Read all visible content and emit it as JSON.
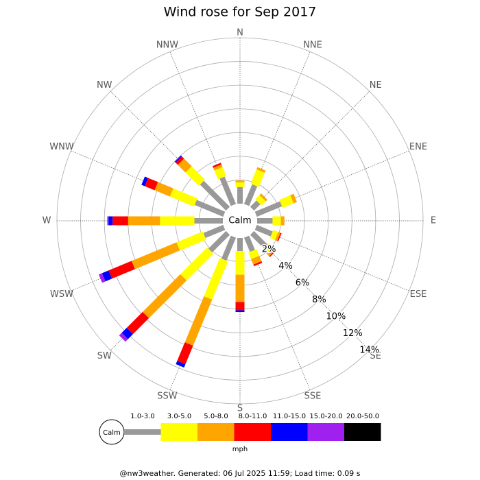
{
  "chart_data": {
    "type": "windrose",
    "title": "Wind rose for Sep 2017",
    "calm_label": "Calm",
    "directions": [
      "N",
      "NNE",
      "NE",
      "ENE",
      "E",
      "ESE",
      "SE",
      "SSE",
      "S",
      "SSW",
      "SW",
      "WSW",
      "W",
      "WNW",
      "NW",
      "NNW"
    ],
    "series": [
      {
        "name": "1.0-3.0",
        "color": "#999999",
        "values": [
          1.4,
          1.8,
          0.75,
          2.3,
          1.3,
          1.45,
          1.6,
          1.3,
          1.1,
          2.1,
          2.1,
          1.8,
          2.4,
          2.6,
          3.1,
          2.5
        ]
      },
      {
        "name": "3.0-5.0",
        "color": "#ffff00",
        "values": [
          0.4,
          1.3,
          0.5,
          1.0,
          0.7,
          0.45,
          0.5,
          0.6,
          2.0,
          3.5,
          3.2,
          2.4,
          2.9,
          2.2,
          1.6,
          0.8
        ]
      },
      {
        "name": "5.0-8.0",
        "color": "#ffa500",
        "values": [
          0.15,
          0.2,
          0.2,
          0.3,
          0.3,
          0.2,
          0.3,
          0.5,
          2.3,
          4.2,
          4.5,
          4.1,
          2.7,
          1.4,
          0.9,
          0.25
        ]
      },
      {
        "name": "8.0-11.0",
        "color": "#ff0000",
        "values": [
          0,
          0,
          0,
          0,
          0,
          0.1,
          0.1,
          0.15,
          0.7,
          1.7,
          1.9,
          2.1,
          1.3,
          0.9,
          0.25,
          0.15
        ]
      },
      {
        "name": "11.0-15.0",
        "color": "#0000ff",
        "values": [
          0,
          0,
          0,
          0,
          0,
          0,
          0,
          0,
          0.15,
          0.3,
          0.6,
          0.6,
          0.35,
          0.3,
          0.1,
          0
        ]
      },
      {
        "name": "15.0-20.0",
        "color": "#a020f0",
        "values": [
          0,
          0,
          0,
          0,
          0,
          0,
          0,
          0,
          0,
          0,
          0.3,
          0.3,
          0.1,
          0,
          0.05,
          0
        ]
      },
      {
        "name": "20.0-50.0",
        "color": "#000000",
        "values": [
          0,
          0,
          0,
          0,
          0,
          0,
          0,
          0,
          0,
          0,
          0,
          0,
          0,
          0,
          0,
          0
        ]
      }
    ],
    "rlim": [
      0,
      14
    ],
    "rticks": [
      {
        "value": 2,
        "label": "2%"
      },
      {
        "value": 4,
        "label": "4%"
      },
      {
        "value": 6,
        "label": "6%"
      },
      {
        "value": 8,
        "label": "8%"
      },
      {
        "value": 10,
        "label": "10%"
      },
      {
        "value": 12,
        "label": "12%"
      },
      {
        "value": 14,
        "label": "14%"
      }
    ],
    "legend_unit": "mph",
    "footer": "@nw3weather. Generated: 06 Jul 2025 11:59; Load time: 0.09 s"
  }
}
